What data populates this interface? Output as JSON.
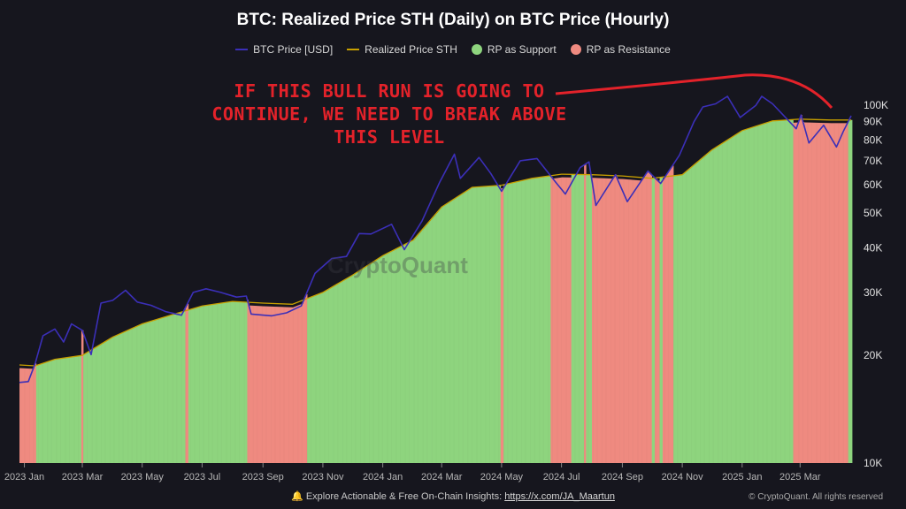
{
  "title": "BTC: Realized Price STH (Daily) on BTC Price (Hourly)",
  "legend": [
    {
      "label": "BTC Price [USD]",
      "kind": "line",
      "color": "#3b2fb8"
    },
    {
      "label": "Realized Price STH",
      "kind": "line",
      "color": "#c8a000"
    },
    {
      "label": "RP as Support",
      "kind": "dot",
      "color": "#8ed47e"
    },
    {
      "label": "RP as Resistance",
      "kind": "dot",
      "color": "#ef8a80"
    }
  ],
  "annotation": "IF THIS BULL RUN IS GOING TO\nCONTINUE, WE NEED TO BREAK ABOVE\nTHIS LEVEL",
  "watermark": "CryptoQuant",
  "footer": {
    "text": "Explore Actionable & Free On-Chain Insights: ",
    "link": "https://x.com/JA_Maartun",
    "copyright": "© CryptoQuant. All rights reserved"
  },
  "colors": {
    "support": "#8ed47e",
    "resistance": "#ef8a80",
    "price": "#3b2fb8",
    "realized": "#c8a000",
    "annotation": "#e3222a"
  },
  "chart_data": {
    "type": "line",
    "title": "BTC: Realized Price STH (Daily) on BTC Price (Hourly)",
    "y_scale": "log",
    "ylim": [
      10000,
      125000
    ],
    "xlim": [
      "2022-12-27",
      "2025-04-22"
    ],
    "yticks": [
      {
        "v": 10000,
        "label": "10K"
      },
      {
        "v": 20000,
        "label": "20K"
      },
      {
        "v": 30000,
        "label": "30K"
      },
      {
        "v": 40000,
        "label": "40K"
      },
      {
        "v": 50000,
        "label": "50K"
      },
      {
        "v": 60000,
        "label": "60K"
      },
      {
        "v": 70000,
        "label": "70K"
      },
      {
        "v": 80000,
        "label": "80K"
      },
      {
        "v": 90000,
        "label": "90K"
      },
      {
        "v": 100000,
        "label": "100K"
      }
    ],
    "xticks": [
      {
        "date": "2023-01-01",
        "label": "2023 Jan"
      },
      {
        "date": "2023-03-01",
        "label": "2023 Mar"
      },
      {
        "date": "2023-05-01",
        "label": "2023 May"
      },
      {
        "date": "2023-07-01",
        "label": "2023 Jul"
      },
      {
        "date": "2023-09-01",
        "label": "2023 Sep"
      },
      {
        "date": "2023-11-01",
        "label": "2023 Nov"
      },
      {
        "date": "2024-01-01",
        "label": "2024 Jan"
      },
      {
        "date": "2024-03-01",
        "label": "2024 Mar"
      },
      {
        "date": "2024-05-01",
        "label": "2024 May"
      },
      {
        "date": "2024-07-01",
        "label": "2024 Jul"
      },
      {
        "date": "2024-09-01",
        "label": "2024 Sep"
      },
      {
        "date": "2024-11-01",
        "label": "2024 Nov"
      },
      {
        "date": "2025-01-01",
        "label": "2025 Jan"
      },
      {
        "date": "2025-03-01",
        "label": "2025 Mar"
      }
    ],
    "series": [
      {
        "name": "BTC Price [USD]",
        "points": [
          [
            "2022-12-27",
            16800
          ],
          [
            "2023-01-05",
            16900
          ],
          [
            "2023-01-12",
            19000
          ],
          [
            "2023-01-20",
            22700
          ],
          [
            "2023-02-01",
            23700
          ],
          [
            "2023-02-10",
            21800
          ],
          [
            "2023-02-18",
            24500
          ],
          [
            "2023-03-01",
            23500
          ],
          [
            "2023-03-10",
            20100
          ],
          [
            "2023-03-20",
            28000
          ],
          [
            "2023-04-01",
            28500
          ],
          [
            "2023-04-14",
            30400
          ],
          [
            "2023-04-26",
            28200
          ],
          [
            "2023-05-10",
            27600
          ],
          [
            "2023-05-25",
            26500
          ],
          [
            "2023-06-10",
            25900
          ],
          [
            "2023-06-22",
            30000
          ],
          [
            "2023-07-05",
            30700
          ],
          [
            "2023-07-20",
            30000
          ],
          [
            "2023-08-05",
            29100
          ],
          [
            "2023-08-15",
            29300
          ],
          [
            "2023-08-20",
            26100
          ],
          [
            "2023-09-10",
            25800
          ],
          [
            "2023-09-25",
            26300
          ],
          [
            "2023-10-10",
            27500
          ],
          [
            "2023-10-24",
            33900
          ],
          [
            "2023-11-10",
            37300
          ],
          [
            "2023-11-25",
            37800
          ],
          [
            "2023-12-08",
            43800
          ],
          [
            "2023-12-20",
            43700
          ],
          [
            "2024-01-10",
            46500
          ],
          [
            "2024-01-23",
            39500
          ],
          [
            "2024-02-10",
            47500
          ],
          [
            "2024-02-28",
            61000
          ],
          [
            "2024-03-14",
            73000
          ],
          [
            "2024-03-20",
            62500
          ],
          [
            "2024-04-08",
            71500
          ],
          [
            "2024-04-20",
            64500
          ],
          [
            "2024-05-01",
            57500
          ],
          [
            "2024-05-20",
            70000
          ],
          [
            "2024-06-06",
            71000
          ],
          [
            "2024-06-25",
            61000
          ],
          [
            "2024-07-05",
            56500
          ],
          [
            "2024-07-20",
            67000
          ],
          [
            "2024-07-29",
            69500
          ],
          [
            "2024-08-05",
            52500
          ],
          [
            "2024-08-25",
            64000
          ],
          [
            "2024-09-06",
            53800
          ],
          [
            "2024-09-27",
            65500
          ],
          [
            "2024-10-10",
            60500
          ],
          [
            "2024-10-29",
            72500
          ],
          [
            "2024-11-13",
            90000
          ],
          [
            "2024-11-22",
            99000
          ],
          [
            "2024-12-05",
            101000
          ],
          [
            "2024-12-17",
            106000
          ],
          [
            "2024-12-30",
            92500
          ],
          [
            "2025-01-15",
            100000
          ],
          [
            "2025-01-21",
            106000
          ],
          [
            "2025-02-01",
            101000
          ],
          [
            "2025-02-25",
            86000
          ],
          [
            "2025-03-02",
            94000
          ],
          [
            "2025-03-10",
            78500
          ],
          [
            "2025-03-25",
            88000
          ],
          [
            "2025-04-07",
            76500
          ],
          [
            "2025-04-14",
            84500
          ],
          [
            "2025-04-22",
            93500
          ]
        ]
      },
      {
        "name": "Realized Price STH",
        "points": [
          [
            "2022-12-27",
            18800
          ],
          [
            "2023-01-12",
            18700
          ],
          [
            "2023-02-01",
            19500
          ],
          [
            "2023-03-01",
            20000
          ],
          [
            "2023-04-01",
            22500
          ],
          [
            "2023-05-01",
            24500
          ],
          [
            "2023-06-01",
            26000
          ],
          [
            "2023-07-01",
            27500
          ],
          [
            "2023-08-01",
            28300
          ],
          [
            "2023-09-01",
            28000
          ],
          [
            "2023-10-01",
            27800
          ],
          [
            "2023-11-01",
            30000
          ],
          [
            "2023-12-01",
            33500
          ],
          [
            "2024-01-01",
            38000
          ],
          [
            "2024-02-01",
            42000
          ],
          [
            "2024-03-01",
            52000
          ],
          [
            "2024-04-01",
            59000
          ],
          [
            "2024-05-01",
            59800
          ],
          [
            "2024-06-01",
            62500
          ],
          [
            "2024-07-01",
            64200
          ],
          [
            "2024-08-01",
            64000
          ],
          [
            "2024-09-01",
            63500
          ],
          [
            "2024-10-01",
            62500
          ],
          [
            "2024-11-01",
            64000
          ],
          [
            "2024-12-01",
            75000
          ],
          [
            "2025-01-01",
            85000
          ],
          [
            "2025-02-01",
            90500
          ],
          [
            "2025-03-01",
            91500
          ],
          [
            "2025-04-01",
            91000
          ],
          [
            "2025-04-22",
            91000
          ]
        ]
      }
    ],
    "resistance_periods": [
      [
        "2022-12-27",
        "2023-01-12"
      ],
      [
        "2023-02-28",
        "2023-03-01"
      ],
      [
        "2023-06-14",
        "2023-06-16"
      ],
      [
        "2023-08-16",
        "2023-10-15"
      ],
      [
        "2024-04-30",
        "2024-05-02"
      ],
      [
        "2024-06-20",
        "2024-07-10"
      ],
      [
        "2024-07-24",
        "2024-07-25"
      ],
      [
        "2024-08-01",
        "2024-09-30"
      ],
      [
        "2024-10-04",
        "2024-10-08"
      ],
      [
        "2024-10-12",
        "2024-10-22"
      ],
      [
        "2025-02-22",
        "2025-04-18"
      ]
    ]
  }
}
